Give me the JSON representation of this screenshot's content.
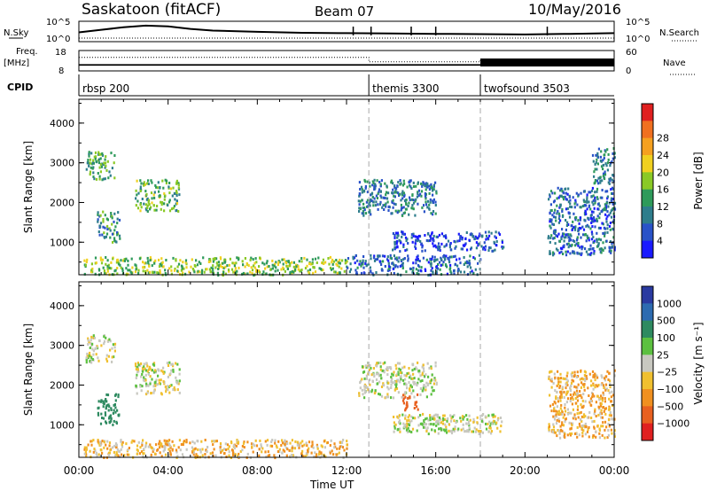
{
  "header": {
    "station": "Saskatoon (fitACF)",
    "beam": "Beam 07",
    "date": "10/May/2016"
  },
  "noise_panel": {
    "left_label": "N.Sky",
    "right_label": "N.Search",
    "left_ticks": [
      "10^5",
      "10^0"
    ],
    "right_ticks": [
      "10^5",
      "10^0"
    ],
    "n_sky_level": [
      [
        0.0,
        0.45
      ],
      [
        1.0,
        0.6
      ],
      [
        2.0,
        0.75
      ],
      [
        3.0,
        0.85
      ],
      [
        4.0,
        0.8
      ],
      [
        5.0,
        0.65
      ],
      [
        6.0,
        0.55
      ],
      [
        8.0,
        0.48
      ],
      [
        10.0,
        0.42
      ],
      [
        12.0,
        0.4
      ],
      [
        14.0,
        0.38
      ],
      [
        16.0,
        0.36
      ],
      [
        18.0,
        0.34
      ],
      [
        20.0,
        0.32
      ],
      [
        22.0,
        0.36
      ],
      [
        24.0,
        0.4
      ]
    ],
    "spikes_hours": [
      12.3,
      13.1,
      14.9,
      16.0,
      21.0
    ]
  },
  "freq_panel": {
    "left_label_1": "Freq.",
    "left_label_2": "[MHz]",
    "left_ticks": [
      "18",
      "8"
    ],
    "right_label": "Nave",
    "right_ticks": [
      "60",
      "0"
    ],
    "nave_steps": [
      {
        "from": 0,
        "to": 13.0,
        "value": 42
      },
      {
        "from": 13.0,
        "to": 18.0,
        "value": 26
      },
      {
        "from": 18.0,
        "to": 24.0,
        "value": 30
      }
    ],
    "freq_level": 10.5,
    "nave_dense_from": 18.0
  },
  "cpid_panel": {
    "label": "CPID",
    "segments": [
      {
        "start": 0,
        "label": "rbsp 200"
      },
      {
        "start": 13.0,
        "label": "themis 3300"
      },
      {
        "start": 18.0,
        "label": "twofsound 3503"
      }
    ]
  },
  "chart_data": [
    {
      "type": "heatmap",
      "title": "Power",
      "ylabel": "Slant Range [km]",
      "ylim": [
        180,
        4600
      ],
      "yticks": [
        "1000",
        "2000",
        "3000",
        "4000"
      ],
      "colorbar_label": "Power [dB]",
      "colorbar_ticks": [
        "4",
        "8",
        "12",
        "16",
        "20",
        "24",
        "28"
      ],
      "colorbar_colors": [
        "#1a1aff",
        "#2952c8",
        "#2e7d8c",
        "#2e9a5a",
        "#8ac926",
        "#f0d020",
        "#f5a020",
        "#f07020",
        "#e02020"
      ],
      "echo_regions": [
        {
          "t0": 0.3,
          "t1": 1.6,
          "r0": 2600,
          "r1": 3300,
          "power": 14
        },
        {
          "t0": 0.8,
          "t1": 1.8,
          "r0": 1000,
          "r1": 1800,
          "power": 12
        },
        {
          "t0": 2.5,
          "t1": 4.5,
          "r0": 1800,
          "r1": 2600,
          "power": 16
        },
        {
          "t0": 0.2,
          "t1": 12.0,
          "r0": 200,
          "r1": 650,
          "power": 18
        },
        {
          "t0": 12.5,
          "t1": 16.0,
          "r0": 1700,
          "r1": 2600,
          "power": 10
        },
        {
          "t0": 14.0,
          "t1": 19.0,
          "r0": 800,
          "r1": 1300,
          "power": 6
        },
        {
          "t0": 12.0,
          "t1": 18.0,
          "r0": 200,
          "r1": 700,
          "power": 8
        },
        {
          "t0": 21.0,
          "t1": 24.0,
          "r0": 700,
          "r1": 2400,
          "power": 8
        },
        {
          "t0": 23.0,
          "t1": 24.0,
          "r0": 2500,
          "r1": 3400,
          "power": 10
        }
      ]
    },
    {
      "type": "heatmap",
      "title": "Velocity",
      "ylabel": "Slant Range [km]",
      "ylim": [
        180,
        4600
      ],
      "yticks": [
        "1000",
        "2000",
        "3000",
        "4000"
      ],
      "colorbar_label": "Velocity [m s⁻¹]",
      "colorbar_ticks": [
        "1000",
        "500",
        "100",
        "25",
        "−25",
        "−100",
        "−500",
        "−1000"
      ],
      "colorbar_colors": [
        "#2a3aa0",
        "#2d6bb0",
        "#2e8a60",
        "#5cc040",
        "#c8c8c0",
        "#f0c030",
        "#f09020",
        "#e86020",
        "#e02020"
      ],
      "echo_regions": [
        {
          "t0": 0.3,
          "t1": 1.6,
          "r0": 2600,
          "r1": 3300,
          "velocity": 0
        },
        {
          "t0": 0.8,
          "t1": 1.8,
          "r0": 1000,
          "r1": 1800,
          "velocity": 150
        },
        {
          "t0": 2.5,
          "t1": 4.5,
          "r0": 1800,
          "r1": 2600,
          "velocity": 0
        },
        {
          "t0": 0.2,
          "t1": 12.0,
          "r0": 200,
          "r1": 650,
          "velocity": -50
        },
        {
          "t0": 12.5,
          "t1": 16.0,
          "r0": 1700,
          "r1": 2600,
          "velocity": 0
        },
        {
          "t0": 14.0,
          "t1": 19.0,
          "r0": 800,
          "r1": 1300,
          "velocity": 0
        },
        {
          "t0": 14.5,
          "t1": 15.2,
          "r0": 1400,
          "r1": 1800,
          "velocity": -450
        },
        {
          "t0": 21.0,
          "t1": 24.0,
          "r0": 700,
          "r1": 2400,
          "velocity": -60
        }
      ]
    }
  ],
  "time_axis": {
    "xlabel": "Time UT",
    "ticks": [
      "00:00",
      "04:00",
      "08:00",
      "12:00",
      "16:00",
      "20:00",
      "00:00"
    ],
    "range_hours": [
      0,
      24
    ],
    "mode_change_hours": [
      13.0,
      18.0
    ]
  }
}
